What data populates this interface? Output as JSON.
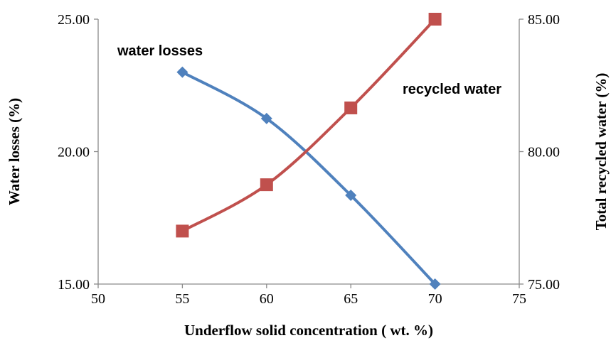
{
  "chart_data": {
    "type": "line",
    "title": "",
    "xlabel": "Underflow solid concentration ( wt. %)",
    "ylabel_left": "Water losses (%)",
    "ylabel_right": "Total recycled water (%)",
    "xlim": [
      50,
      75
    ],
    "xticks": [
      "50",
      "55",
      "60",
      "65",
      "70",
      "75"
    ],
    "ylim_left": [
      15,
      25
    ],
    "yticks_left": [
      "15.00",
      "20.00",
      "25.00"
    ],
    "ylim_right": [
      75,
      85
    ],
    "yticks_right": [
      "75.00",
      "80.00",
      "85.00"
    ],
    "grid": false,
    "legend": "none",
    "series": [
      {
        "axis": "left",
        "marker": "diamond",
        "color": "#4F81BD",
        "x": [
          55,
          60,
          65,
          70
        ],
        "y": [
          23.0,
          21.25,
          18.35,
          15.0
        ]
      },
      {
        "axis": "right",
        "marker": "square",
        "color": "#C0504D",
        "x": [
          55,
          60,
          65,
          70
        ],
        "y": [
          77.0,
          78.75,
          81.65,
          85.0
        ]
      }
    ],
    "annotations": [
      {
        "text": "water losses",
        "series": 0
      },
      {
        "text": "recycled water",
        "series": 1
      }
    ]
  }
}
